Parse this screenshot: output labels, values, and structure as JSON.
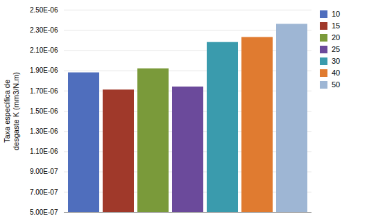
{
  "chart_data": {
    "type": "bar",
    "categories": [
      "10",
      "15",
      "20",
      "25",
      "30",
      "40",
      "50"
    ],
    "values": [
      1.88e-06,
      1.71e-06,
      1.92e-06,
      1.74e-06,
      2.18e-06,
      2.23e-06,
      2.36e-06
    ],
    "colors": [
      "#4F6EBD",
      "#A0392A",
      "#7A9A3A",
      "#6B4A9B",
      "#3A9BAD",
      "#E07B30",
      "#9EB6D4"
    ],
    "ylabel": "Taxa específica de\ndesgaste K (mm3/N.m)",
    "ylim": [
      5e-07,
      2.5e-06
    ],
    "yticks": [
      {
        "value": 5e-07,
        "label": "5.00E-07"
      },
      {
        "value": 7e-07,
        "label": "7.00E-07"
      },
      {
        "value": 9e-07,
        "label": "9.00E-07"
      },
      {
        "value": 1.1e-06,
        "label": "1.10E-06"
      },
      {
        "value": 1.3e-06,
        "label": "1.30E-06"
      },
      {
        "value": 1.5e-06,
        "label": "1.50E-06"
      },
      {
        "value": 1.7e-06,
        "label": "1.70E-06"
      },
      {
        "value": 1.9e-06,
        "label": "1.90E-06"
      },
      {
        "value": 2.1e-06,
        "label": "2.10E-06"
      },
      {
        "value": 2.3e-06,
        "label": "2.30E-06"
      },
      {
        "value": 2.5e-06,
        "label": "2.50E-06"
      }
    ],
    "grid": true,
    "legend": "right",
    "tick_labels": "y"
  }
}
